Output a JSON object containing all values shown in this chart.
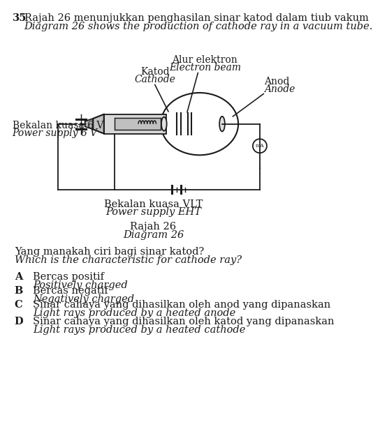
{
  "question_number": "35",
  "title_malay": "Rajah 26 menunjukkan penghasilan sinar katod dalam tiub vakum",
  "title_english": "Diagram 26 shows the production of cathode ray in a vacuum tube.",
  "label_cathode_malay": "Katod",
  "label_cathode_english": "Cathode",
  "label_anode_malay": "Anod",
  "label_anode_english": "Anode",
  "label_beam_malay": "Alur elektron",
  "label_beam_english": "Electron beam",
  "label_power6v_malay": "Bekalan kuasa 6 V",
  "label_power6v_english": "Power supply 6 V",
  "label_powervlt_malay": "Bekalan kuasa VLT",
  "label_powervlt_english": "Power supply EHT",
  "diagram_label_malay": "Rajah 26",
  "diagram_label_english": "Diagram 26",
  "question_malay": "Yang manakah ciri bagi sinar katod?",
  "question_english": "Which is the characteristic for cathode ray?",
  "options": [
    {
      "key": "A",
      "malay": "Bercas positif",
      "english": "Positively charged"
    },
    {
      "key": "B",
      "malay": "Bercas negatif",
      "english": "Negatively charged"
    },
    {
      "key": "C",
      "malay": "Sinar cahaya yang dihasilkan oleh anod yang dipanaskan",
      "english": "Light rays produced by a heated anode"
    },
    {
      "key": "D",
      "malay": "Sinar cahaya yang dihasilkan oleh katod yang dipanaskan",
      "english": "Light rays produced by a heated cathode"
    }
  ],
  "bg_color": "#ffffff",
  "line_color": "#1a1a1a"
}
